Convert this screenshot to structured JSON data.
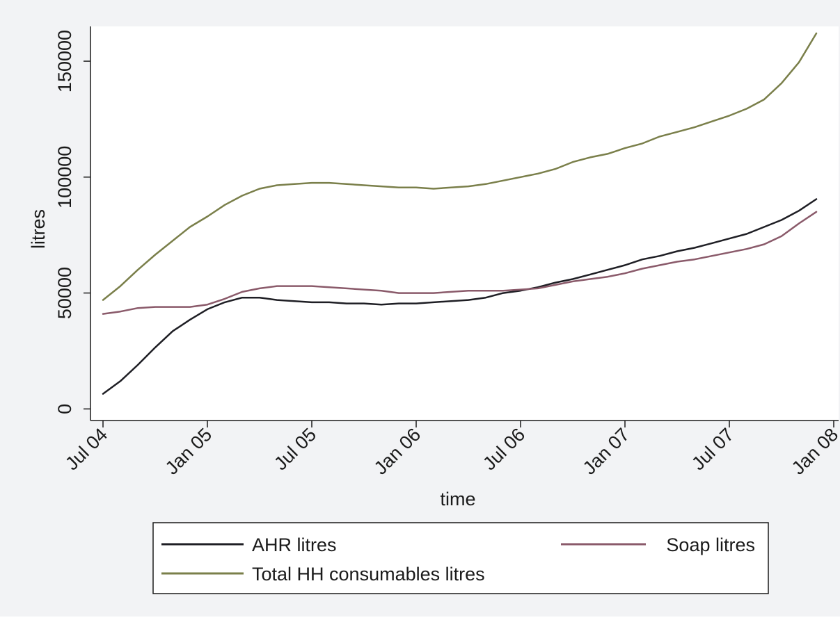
{
  "chart_data": {
    "type": "line",
    "title": "",
    "xlabel": "time",
    "ylabel": "litres",
    "x": [
      "2004-07",
      "2004-08",
      "2004-09",
      "2004-10",
      "2004-11",
      "2004-12",
      "2005-01",
      "2005-02",
      "2005-03",
      "2005-04",
      "2005-05",
      "2005-06",
      "2005-07",
      "2005-08",
      "2005-09",
      "2005-10",
      "2005-11",
      "2005-12",
      "2006-01",
      "2006-02",
      "2006-03",
      "2006-04",
      "2006-05",
      "2006-06",
      "2006-07",
      "2006-08",
      "2006-09",
      "2006-10",
      "2006-11",
      "2006-12",
      "2007-01",
      "2007-02",
      "2007-03",
      "2007-04",
      "2007-05",
      "2007-06",
      "2007-07",
      "2007-08",
      "2007-09",
      "2007-10",
      "2007-11",
      "2007-12"
    ],
    "xlim": [
      "2004-07",
      "2008-01"
    ],
    "x_ticks": [
      {
        "value": "2004-07",
        "label": "Jul 04"
      },
      {
        "value": "2005-01",
        "label": "Jan 05"
      },
      {
        "value": "2005-07",
        "label": "Jul 05"
      },
      {
        "value": "2006-01",
        "label": "Jan 06"
      },
      {
        "value": "2006-07",
        "label": "Jul 06"
      },
      {
        "value": "2007-01",
        "label": "Jan 07"
      },
      {
        "value": "2007-07",
        "label": "Jul 07"
      },
      {
        "value": "2008-01",
        "label": "Jan 08"
      }
    ],
    "ylim": [
      -5000,
      165000
    ],
    "y_ticks": [
      {
        "value": 0,
        "label": "0"
      },
      {
        "value": 50000,
        "label": "50000"
      },
      {
        "value": 100000,
        "label": "100000"
      },
      {
        "value": 150000,
        "label": "150000"
      }
    ],
    "grid": false,
    "legend_position": "bottom",
    "series": [
      {
        "name": "AHR litres",
        "color": "#1e1e24",
        "values": [
          6500,
          12000,
          19000,
          26500,
          33500,
          38500,
          43000,
          46000,
          48000,
          48000,
          47000,
          46500,
          46000,
          46000,
          45500,
          45500,
          45000,
          45500,
          45500,
          46000,
          46500,
          47000,
          48000,
          50000,
          51000,
          52500,
          54500,
          56000,
          58000,
          60000,
          62000,
          64500,
          66000,
          68000,
          69500,
          71500,
          73500,
          75500,
          78500,
          81500,
          85500,
          90500
        ]
      },
      {
        "name": "Soap litres",
        "color": "#8a5a6a",
        "values": [
          41000,
          42000,
          43500,
          44000,
          44000,
          44000,
          45000,
          47500,
          50500,
          52000,
          53000,
          53000,
          53000,
          52500,
          52000,
          51500,
          51000,
          50000,
          50000,
          50000,
          50500,
          51000,
          51000,
          51000,
          51500,
          52000,
          53500,
          55000,
          56000,
          57000,
          58500,
          60500,
          62000,
          63500,
          64500,
          66000,
          67500,
          69000,
          71000,
          74500,
          80000,
          85000
        ]
      },
      {
        "name": "Total HH consumables litres",
        "color": "#7a7f4a",
        "values": [
          47000,
          53000,
          60000,
          66500,
          72500,
          78500,
          83000,
          88000,
          92000,
          95000,
          96500,
          97000,
          97500,
          97500,
          97000,
          96500,
          96000,
          95500,
          95500,
          95000,
          95500,
          96000,
          97000,
          98500,
          100000,
          101500,
          103500,
          106500,
          108500,
          110000,
          112500,
          114500,
          117500,
          119500,
          121500,
          124000,
          126500,
          129500,
          133500,
          140500,
          149500,
          162000
        ]
      }
    ]
  }
}
